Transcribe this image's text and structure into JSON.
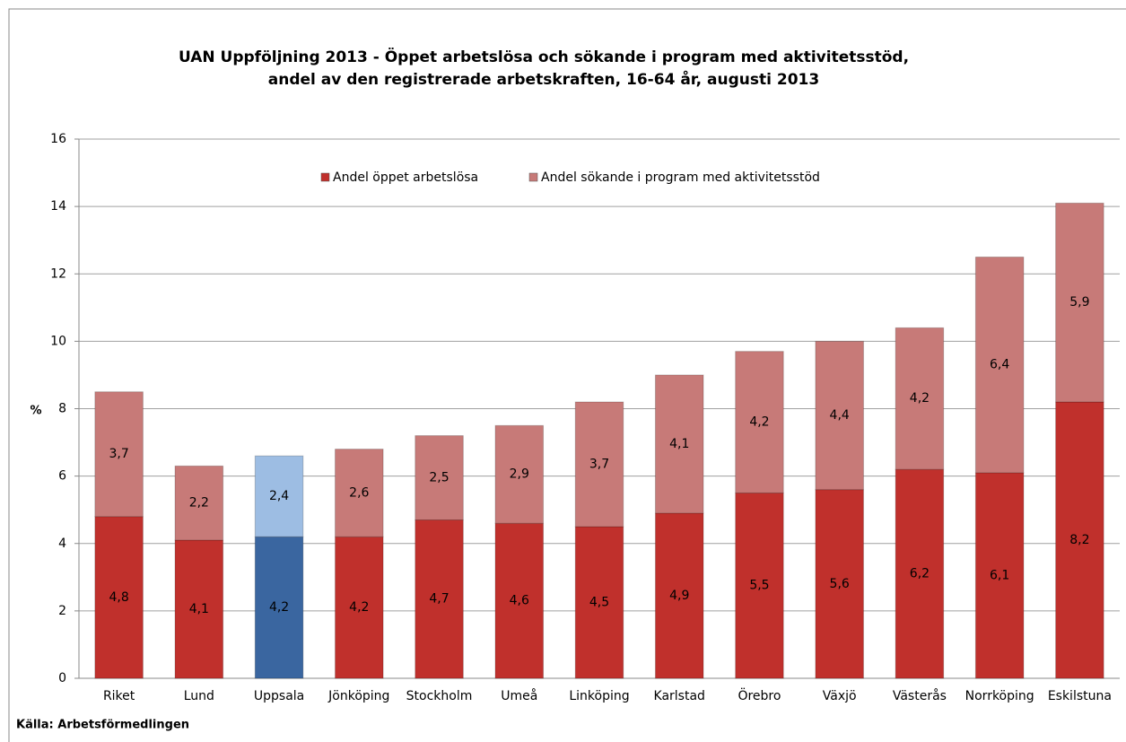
{
  "chart_data": {
    "type": "stacked_bar",
    "title": [
      "UAN Uppföljning 2013 - Öppet arbetslösa och sökande i program med aktivitetsstöd,",
      "andel av den registrerade arbetskraften, 16-64 år, augusti 2013"
    ],
    "y_label": "%",
    "source": "Källa: Arbetsförmedlingen",
    "categories": [
      "Riket",
      "Lund",
      "Uppsala",
      "Jönköping",
      "Stockholm",
      "Umeå",
      "Linköping",
      "Karlstad",
      "Örebro",
      "Växjö",
      "Västerås",
      "Norrköping",
      "Eskilstuna"
    ],
    "series": [
      {
        "name": "Andel öppet arbetslösa",
        "color": "#c0302c",
        "colors": [
          "#c0302c",
          "#c0302c",
          "#3a66a0",
          "#c0302c",
          "#c0302c",
          "#c0302c",
          "#c0302c",
          "#c0302c",
          "#c0302c",
          "#c0302c",
          "#c0302c",
          "#c0302c",
          "#c0302c"
        ],
        "values": [
          4.8,
          4.1,
          4.2,
          4.2,
          4.7,
          4.6,
          4.5,
          4.9,
          5.5,
          5.6,
          6.2,
          6.1,
          8.2
        ],
        "value_labels": [
          "4,8",
          "4,1",
          "4,2",
          "4,2",
          "4,7",
          "4,6",
          "4,5",
          "4,9",
          "5,5",
          "5,6",
          "6,2",
          "6,1",
          "8,2"
        ]
      },
      {
        "name": "Andel sökande i program med aktivitetsstöd",
        "color": "#c77a78",
        "colors": [
          "#c77a78",
          "#c77a78",
          "#9dbde3",
          "#c77a78",
          "#c77a78",
          "#c77a78",
          "#c77a78",
          "#c77a78",
          "#c77a78",
          "#c77a78",
          "#c77a78",
          "#c77a78",
          "#c77a78"
        ],
        "values": [
          3.7,
          2.2,
          2.4,
          2.6,
          2.5,
          2.9,
          3.7,
          4.1,
          4.2,
          4.4,
          4.2,
          6.4,
          5.9
        ],
        "value_labels": [
          "3,7",
          "2,2",
          "2,4",
          "2,6",
          "2,5",
          "2,9",
          "3,7",
          "4,1",
          "4,2",
          "4,4",
          "4,2",
          "6,4",
          "5,9"
        ]
      }
    ],
    "ylim": [
      0,
      16
    ],
    "yticks": [
      0,
      2,
      4,
      6,
      8,
      10,
      12,
      14,
      16
    ],
    "grid": true,
    "legend": "top"
  }
}
